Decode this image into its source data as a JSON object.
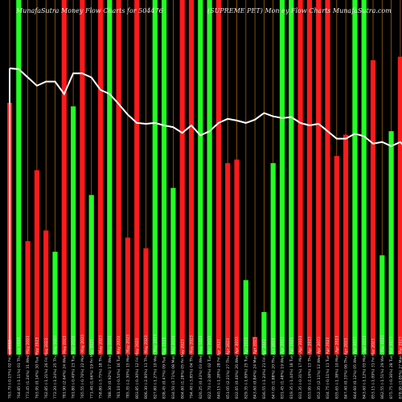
{
  "header": {
    "left": "MunafaSutra  Money Flow  Charts for 504476",
    "right": "(SUPREME PET) Mon ey Flow  Charts  MunafaSutra.com"
  },
  "colors": {
    "background": "#000000",
    "up_bar": "#22ff22",
    "down_bar": "#ff1a1a",
    "grid": "#a06010",
    "price_line": "#ffffff"
  },
  "chart_data": {
    "type": "bar",
    "title": "MunafaSutra  Money Flow  Charts for 504476",
    "subtitle": "(SUPREME PET) Mon ey Flow  Charts  MunafaSutra.com",
    "ylim": [
      0,
      100
    ],
    "categories": [
      "763.70 (-0.15%) 02 Fri Jun 2023",
      "764.85 (-1.11%) 01 Thu Jun 2023",
      "773.45 (1.24%) 31 Wed May 2023",
      "763.95 (0.14%) 30 Tue May 2023",
      "762.85 (-1.21%) 26 Fri May 2023",
      "772.20 (-1.24%) 25 Thu May 2023",
      "781.90 (2.64%) 24 Wed May 2023",
      "761.80 (-0.49%) 23 Tue May 2023",
      "765.55 (-0.76%) 22 Mon May 2023",
      "771.40 (1.66%) 19 Fri May 2023",
      "758.80 (-3.75%) 18 Thu May 2023",
      "788.30 (0.92%) 17 Wed May 2023",
      "781.10 (-0.54%) 16 Tue May 2023",
      "785.35 (-2.30%) 15 Mon May 2023",
      "803.85 (-0.30%) 12 Fri May 2023",
      "806.30 (-2.60%) 11 Thu May 2023",
      "827.80 (-1.27%) 10 Wed May 2023",
      "838.45 (0.47%) 09 Tue May 2023",
      "834.50 (3.71%) 08 Mon May 2023",
      "804.60 (1.28%) 05 Fri May 2023",
      "794.40 (-3.85%) 04 Thu May 2023",
      "826.25 (0.43%) 03 Wed May 2023",
      "822.70 (-2.08%) 02 Tue May 2023",
      "840.15 (-1.28%) 28 Fri Apr 2023",
      "851.05 (2.21%) 27 Thu Apr 2023",
      "832.65 (0.40%) 26 Wed Apr 2023",
      "829.35 (-1.69%) 25 Tue Apr 2023",
      "843.60 (0.84%) 24 Mon Apr 2023",
      "836.55 (-1.24%) 21 Fri Apr 2023",
      "847.05 (1.88%) 20 Thu Apr 2023",
      "831.45 (1.48%) 19 Wed Apr 2023",
      "819.35 (-1.44%) 18 Tue Apr 2023",
      "831.35 (-0.31%) 17 Mon Apr 2023",
      "833.95 (-2.16%) 13 Thu Apr 2023",
      "852.35 (2.11%) 12 Wed Apr 2023",
      "834.75 (-0.11%) 11 Tue Apr 2023",
      "835.65 (-1.38%) 10 Mon Apr 2023",
      "847.40 (0.33%) 06 Thu Apr 2023",
      "844.60 (0.12%) 05 Wed Apr 2023",
      "843.60 (-1.12%) 03 Mon Apr 2023",
      "853.15 (-1.09%) 31 Fri Mar 2023",
      "862.55 (-1.51%) 29 Wed Mar 2023",
      "875.75 (-0.36%) 28 Tue Mar 2023",
      "878.95 (3.05%) 27 Mon Mar 2023",
      "852.90 (-1.00%) 24 Fri Mar 2023",
      "861.45 (-0.92%) 23 Thu Mar 2023",
      "869.45 (2.57%) 22 Wed Mar 2023",
      "847.70 (-1.57%) 21 Tue Mar 2023",
      "861.20 (-3.19%) 20 Mon Mar 2023",
      "889.55 (-1.21%) 17 Fri Mar 2023"
    ],
    "series": [
      {
        "directions": [
          "down",
          "up",
          "down",
          "down",
          "down",
          "up",
          "down",
          "up",
          "down",
          "up",
          "down",
          "up",
          "down",
          "down",
          "down",
          "down",
          "up",
          "up",
          "up",
          "down",
          "down",
          "up",
          "up",
          "down",
          "down",
          "down",
          "up",
          "down",
          "up",
          "up",
          "up",
          "up",
          "down",
          "down",
          "down",
          "down",
          "down",
          "down",
          "up",
          "up",
          "down",
          "up",
          "up",
          "down",
          "down",
          "down",
          "up",
          "up",
          "up",
          "down"
        ],
        "values": [
          71,
          100,
          32,
          52,
          35,
          29,
          100,
          70,
          100,
          45,
          100,
          100,
          100,
          33,
          100,
          30,
          100,
          100,
          47,
          100,
          100,
          100,
          100,
          100,
          54,
          55,
          21,
          5,
          12,
          54,
          100,
          100,
          100,
          100,
          100,
          100,
          56,
          62,
          100,
          100,
          83,
          28,
          63,
          84,
          27,
          48,
          25,
          72,
          100,
          20
        ]
      },
      {
        "name": "price",
        "values": [
          811,
          810,
          800,
          790,
          795,
          795,
          780,
          805,
          805,
          800,
          785,
          780,
          768,
          755,
          745,
          744,
          745,
          742,
          740,
          733,
          742,
          730,
          735,
          745,
          750,
          748,
          745,
          749,
          757,
          753,
          751,
          752,
          745,
          742,
          744,
          735,
          726,
          726,
          732,
          729,
          720,
          722,
          717,
          722,
          709,
          716,
          712,
          715,
          717,
          720
        ]
      }
    ]
  }
}
